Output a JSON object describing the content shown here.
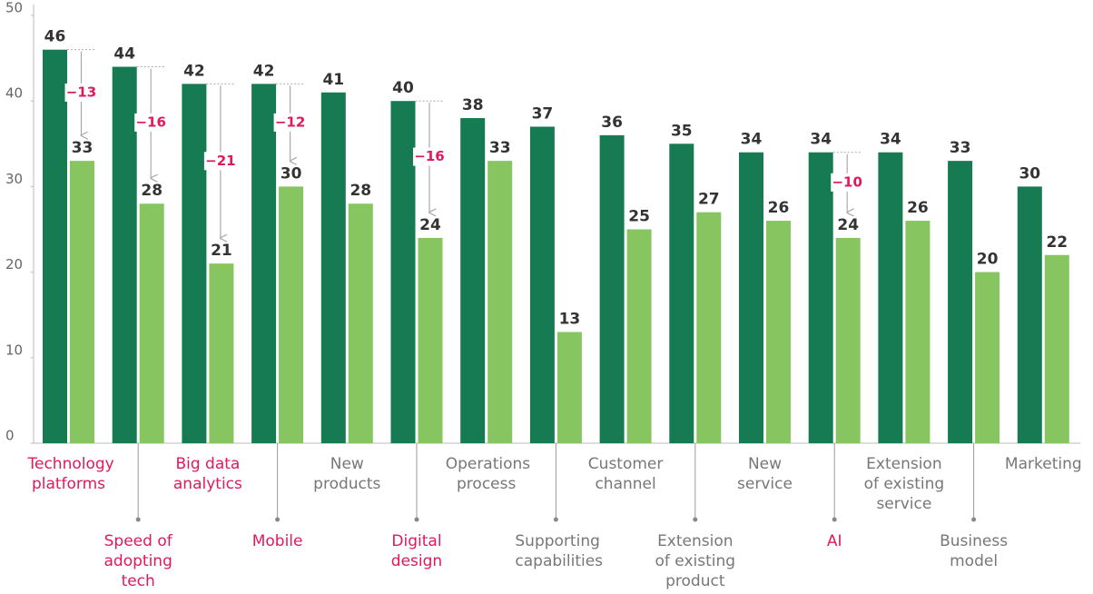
{
  "chart_data": {
    "type": "bar",
    "categories": [
      "Technology platforms",
      "Speed of adopting tech",
      "Big data analytics",
      "Mobile",
      "New products",
      "Digital design",
      "Operations process",
      "Supporting capabilities",
      "Customer channel",
      "Extension of existing product",
      "New service",
      "AI",
      "Extension of existing service",
      "Business model",
      "Marketing"
    ],
    "series": [
      {
        "color": "#167a52",
        "values": [
          46,
          44,
          42,
          42,
          41,
          40,
          38,
          37,
          36,
          35,
          34,
          34,
          34,
          33,
          30
        ]
      },
      {
        "color": "#86c55f",
        "values": [
          33,
          28,
          21,
          30,
          28,
          24,
          33,
          13,
          25,
          27,
          26,
          24,
          26,
          20,
          22
        ]
      }
    ],
    "annotations": [
      {
        "category": "Technology platforms",
        "value": -13,
        "label": "−13"
      },
      {
        "category": "Speed of adopting tech",
        "value": -16,
        "label": "−16"
      },
      {
        "category": "Big data analytics",
        "value": -21,
        "label": "−21"
      },
      {
        "category": "Mobile",
        "value": -12,
        "label": "−12"
      },
      {
        "category": "Digital design",
        "value": -16,
        "label": "−16"
      },
      {
        "category": "AI",
        "value": -10,
        "label": "−10"
      }
    ],
    "highlight_color": "#e0195a",
    "ylim": [
      0,
      50
    ],
    "yticks": [
      0,
      10,
      20,
      30,
      40,
      50
    ],
    "grid": false
  }
}
